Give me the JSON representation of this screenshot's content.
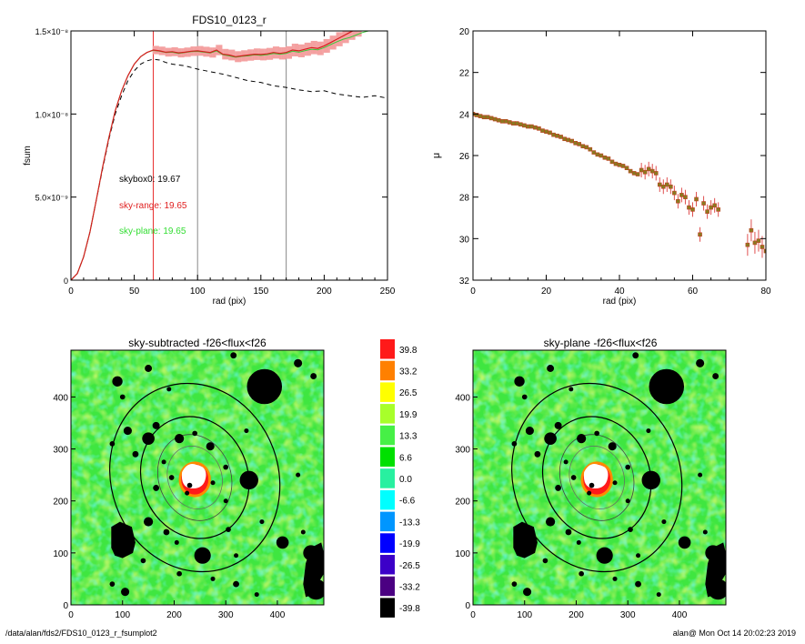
{
  "footer": {
    "path": "/data/alan/fds2/FDS10_0123_r_fsumplot2",
    "user_time": "alan@  Mon Oct 14 20:02:23 2019"
  },
  "chart_data": [
    {
      "type": "line",
      "title": "FDS10_0123_r",
      "xlabel": "rad (pix)",
      "ylabel": "fsum",
      "xlim": [
        0,
        250
      ],
      "ylim": [
        0,
        1.5e-08
      ],
      "x_ticks": [
        "0",
        "50",
        "100",
        "150",
        "200",
        "250"
      ],
      "y_ticks": [
        {
          "value": 0,
          "label": "0"
        },
        {
          "value": 5e-09,
          "label": "5.0×10⁻⁹"
        },
        {
          "value": 1e-08,
          "label": "1.0×10⁻⁸"
        },
        {
          "value": 1.5e-08,
          "label": "1.5×10⁻⁸"
        }
      ],
      "vlines": [
        {
          "x": 65,
          "color": "#e83030"
        },
        {
          "x": 100,
          "color": "#888888"
        },
        {
          "x": 170,
          "color": "#888888"
        }
      ],
      "annotations": [
        {
          "text": "skybox0: 19.67",
          "color": "#000000"
        },
        {
          "text": "sky-range: 19.65",
          "color": "#e02020"
        },
        {
          "text": "sky-plane: 19.65",
          "color": "#33dd33"
        }
      ],
      "series_lines": {
        "red": {
          "color": "#d61e1e",
          "x": [
            0,
            5,
            10,
            15,
            20,
            25,
            30,
            35,
            40,
            45,
            50,
            55,
            60,
            65,
            70,
            75,
            80,
            85,
            90,
            95,
            100,
            105,
            110,
            115,
            120,
            125,
            130,
            135,
            140,
            145,
            150,
            155,
            160,
            165,
            170,
            175,
            180,
            185,
            190,
            195,
            200,
            205,
            210,
            215,
            220,
            225
          ],
          "y": [
            0,
            0.04,
            0.14,
            0.29,
            0.48,
            0.68,
            0.86,
            1.02,
            1.14,
            1.23,
            1.3,
            1.345,
            1.37,
            1.385,
            1.38,
            1.372,
            1.375,
            1.368,
            1.372,
            1.378,
            1.38,
            1.375,
            1.37,
            1.385,
            1.36,
            1.355,
            1.345,
            1.35,
            1.355,
            1.36,
            1.358,
            1.362,
            1.37,
            1.365,
            1.37,
            1.385,
            1.38,
            1.39,
            1.4,
            1.395,
            1.41,
            1.43,
            1.45,
            1.47,
            1.49,
            1.51
          ]
        },
        "green": {
          "color": "#39c939",
          "x": [
            0,
            5,
            10,
            15,
            20,
            25,
            30,
            35,
            40,
            45,
            50,
            55,
            60,
            65,
            70,
            75,
            80,
            85,
            90,
            95,
            100,
            105,
            110,
            115,
            120,
            125,
            130,
            135,
            140,
            145,
            150,
            155,
            160,
            165,
            170,
            175,
            180,
            185,
            190,
            195,
            200,
            205,
            210,
            215,
            220,
            225,
            230,
            235
          ],
          "y": [
            0,
            0.04,
            0.14,
            0.29,
            0.48,
            0.68,
            0.86,
            1.02,
            1.14,
            1.23,
            1.3,
            1.345,
            1.37,
            1.383,
            1.378,
            1.37,
            1.372,
            1.365,
            1.37,
            1.375,
            1.377,
            1.372,
            1.367,
            1.38,
            1.357,
            1.35,
            1.342,
            1.347,
            1.35,
            1.356,
            1.353,
            1.357,
            1.365,
            1.36,
            1.365,
            1.378,
            1.372,
            1.382,
            1.39,
            1.386,
            1.4,
            1.418,
            1.435,
            1.45,
            1.46,
            1.475,
            1.49,
            1.5
          ]
        },
        "black_dashed": {
          "color": "#000000",
          "x": [
            0,
            5,
            10,
            15,
            20,
            25,
            30,
            35,
            40,
            45,
            50,
            55,
            60,
            65,
            70,
            75,
            80,
            85,
            90,
            95,
            100,
            110,
            120,
            130,
            140,
            150,
            160,
            170,
            180,
            190,
            200,
            210,
            220,
            230,
            240,
            250
          ],
          "y": [
            0,
            0.04,
            0.14,
            0.29,
            0.48,
            0.67,
            0.85,
            1.0,
            1.11,
            1.2,
            1.26,
            1.3,
            1.32,
            1.33,
            1.325,
            1.31,
            1.3,
            1.295,
            1.29,
            1.28,
            1.27,
            1.255,
            1.24,
            1.22,
            1.2,
            1.19,
            1.17,
            1.16,
            1.145,
            1.135,
            1.14,
            1.12,
            1.11,
            1.1,
            1.11,
            1.095
          ]
        }
      }
    },
    {
      "type": "scatter",
      "title": "",
      "xlabel": "rad (pix)",
      "ylabel": "μ",
      "xlim": [
        0,
        80
      ],
      "ylim": [
        32,
        20
      ],
      "x_ticks": [
        "0",
        "20",
        "40",
        "60",
        "80"
      ],
      "y_ticks": [
        "20",
        "22",
        "24",
        "26",
        "28",
        "30",
        "32"
      ],
      "series": [
        {
          "x": [
            0,
            1,
            2,
            3,
            4,
            5,
            6,
            7,
            8,
            9,
            10,
            11,
            12,
            13,
            14,
            15,
            16,
            17,
            18,
            19,
            20,
            21,
            22,
            23,
            24,
            25,
            26,
            27,
            28,
            29,
            30,
            31,
            32,
            33,
            34,
            35,
            36,
            37,
            38,
            39,
            40,
            41,
            42,
            43,
            44,
            45,
            46,
            47,
            48,
            49,
            50,
            51,
            52,
            53,
            54,
            55,
            56,
            57,
            58,
            59,
            60,
            61,
            62,
            63,
            64,
            65,
            66,
            67,
            75,
            76,
            77,
            78,
            79,
            80
          ],
          "y": [
            24.0,
            24.05,
            24.1,
            24.15,
            24.15,
            24.2,
            24.25,
            24.3,
            24.35,
            24.35,
            24.4,
            24.45,
            24.45,
            24.5,
            24.55,
            24.6,
            24.6,
            24.65,
            24.7,
            24.8,
            24.85,
            24.9,
            25.0,
            25.05,
            25.1,
            25.2,
            25.25,
            25.3,
            25.4,
            25.45,
            25.55,
            25.6,
            25.7,
            25.85,
            25.95,
            26.0,
            26.1,
            26.15,
            26.3,
            26.4,
            26.45,
            26.5,
            26.6,
            26.75,
            26.85,
            26.9,
            26.7,
            26.8,
            26.65,
            26.75,
            26.85,
            27.4,
            27.5,
            27.4,
            27.5,
            27.8,
            28.2,
            27.9,
            28.0,
            28.5,
            28.6,
            28.1,
            29.8,
            28.3,
            28.7,
            28.5,
            28.4,
            28.6,
            30.3,
            29.6,
            30.2,
            30.1,
            30.4,
            30.6
          ]
        }
      ]
    },
    {
      "type": "heatmap",
      "title": "sky-subtracted -f26<flux<f26",
      "xlim": [
        0,
        490
      ],
      "ylim": [
        0,
        490
      ],
      "x_ticks": [
        "0",
        "100",
        "200",
        "300",
        "400"
      ],
      "y_ticks": [
        "0",
        "100",
        "200",
        "300",
        "400"
      ]
    },
    {
      "type": "heatmap",
      "title": "sky-plane -f26<flux<f26",
      "xlim": [
        0,
        490
      ],
      "ylim": [
        0,
        490
      ],
      "x_ticks": [
        "0",
        "100",
        "200",
        "300",
        "400"
      ],
      "y_ticks": [
        "0",
        "100",
        "200",
        "300",
        "400"
      ]
    }
  ],
  "colorbar": {
    "labels": [
      "39.8",
      "33.2",
      "26.5",
      "19.9",
      "13.3",
      "6.6",
      "0.0",
      "-6.6",
      "-13.3",
      "-19.9",
      "-26.5",
      "-33.2",
      "-39.8"
    ],
    "colors": [
      "#ff1a1a",
      "#ff8000",
      "#ffff00",
      "#a8ff2a",
      "#46f046",
      "#00e000",
      "#28f0a0",
      "#00ffff",
      "#0096ff",
      "#0000ff",
      "#3c00c8",
      "#4b0082",
      "#000000"
    ]
  }
}
